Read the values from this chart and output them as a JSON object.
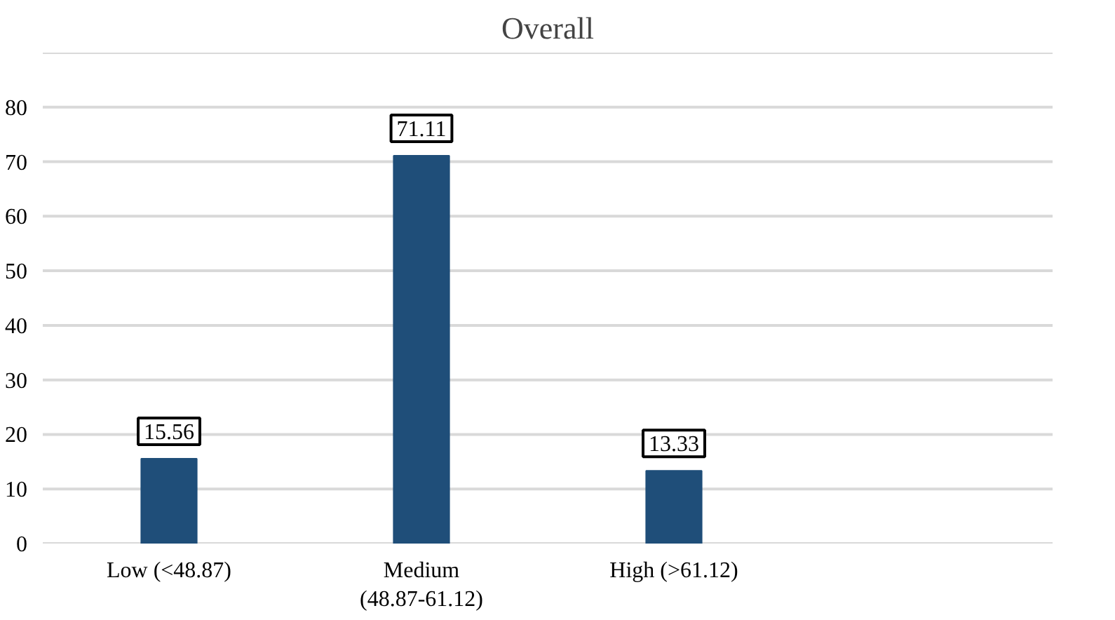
{
  "chart_data": {
    "type": "bar",
    "title": "Overall",
    "categories": [
      "Low (<48.87)",
      "Medium\n(48.87-61.12)",
      "High (>61.12)",
      null
    ],
    "values": [
      15.56,
      71.11,
      13.33,
      null
    ],
    "color": "#1f4e79",
    "ylim": [
      0,
      90
    ],
    "yticks": [
      0,
      10,
      20,
      30,
      40,
      50,
      60,
      70,
      80,
      {
        "value": 90,
        "label": null
      }
    ],
    "grid": "y",
    "data_labels": true
  }
}
